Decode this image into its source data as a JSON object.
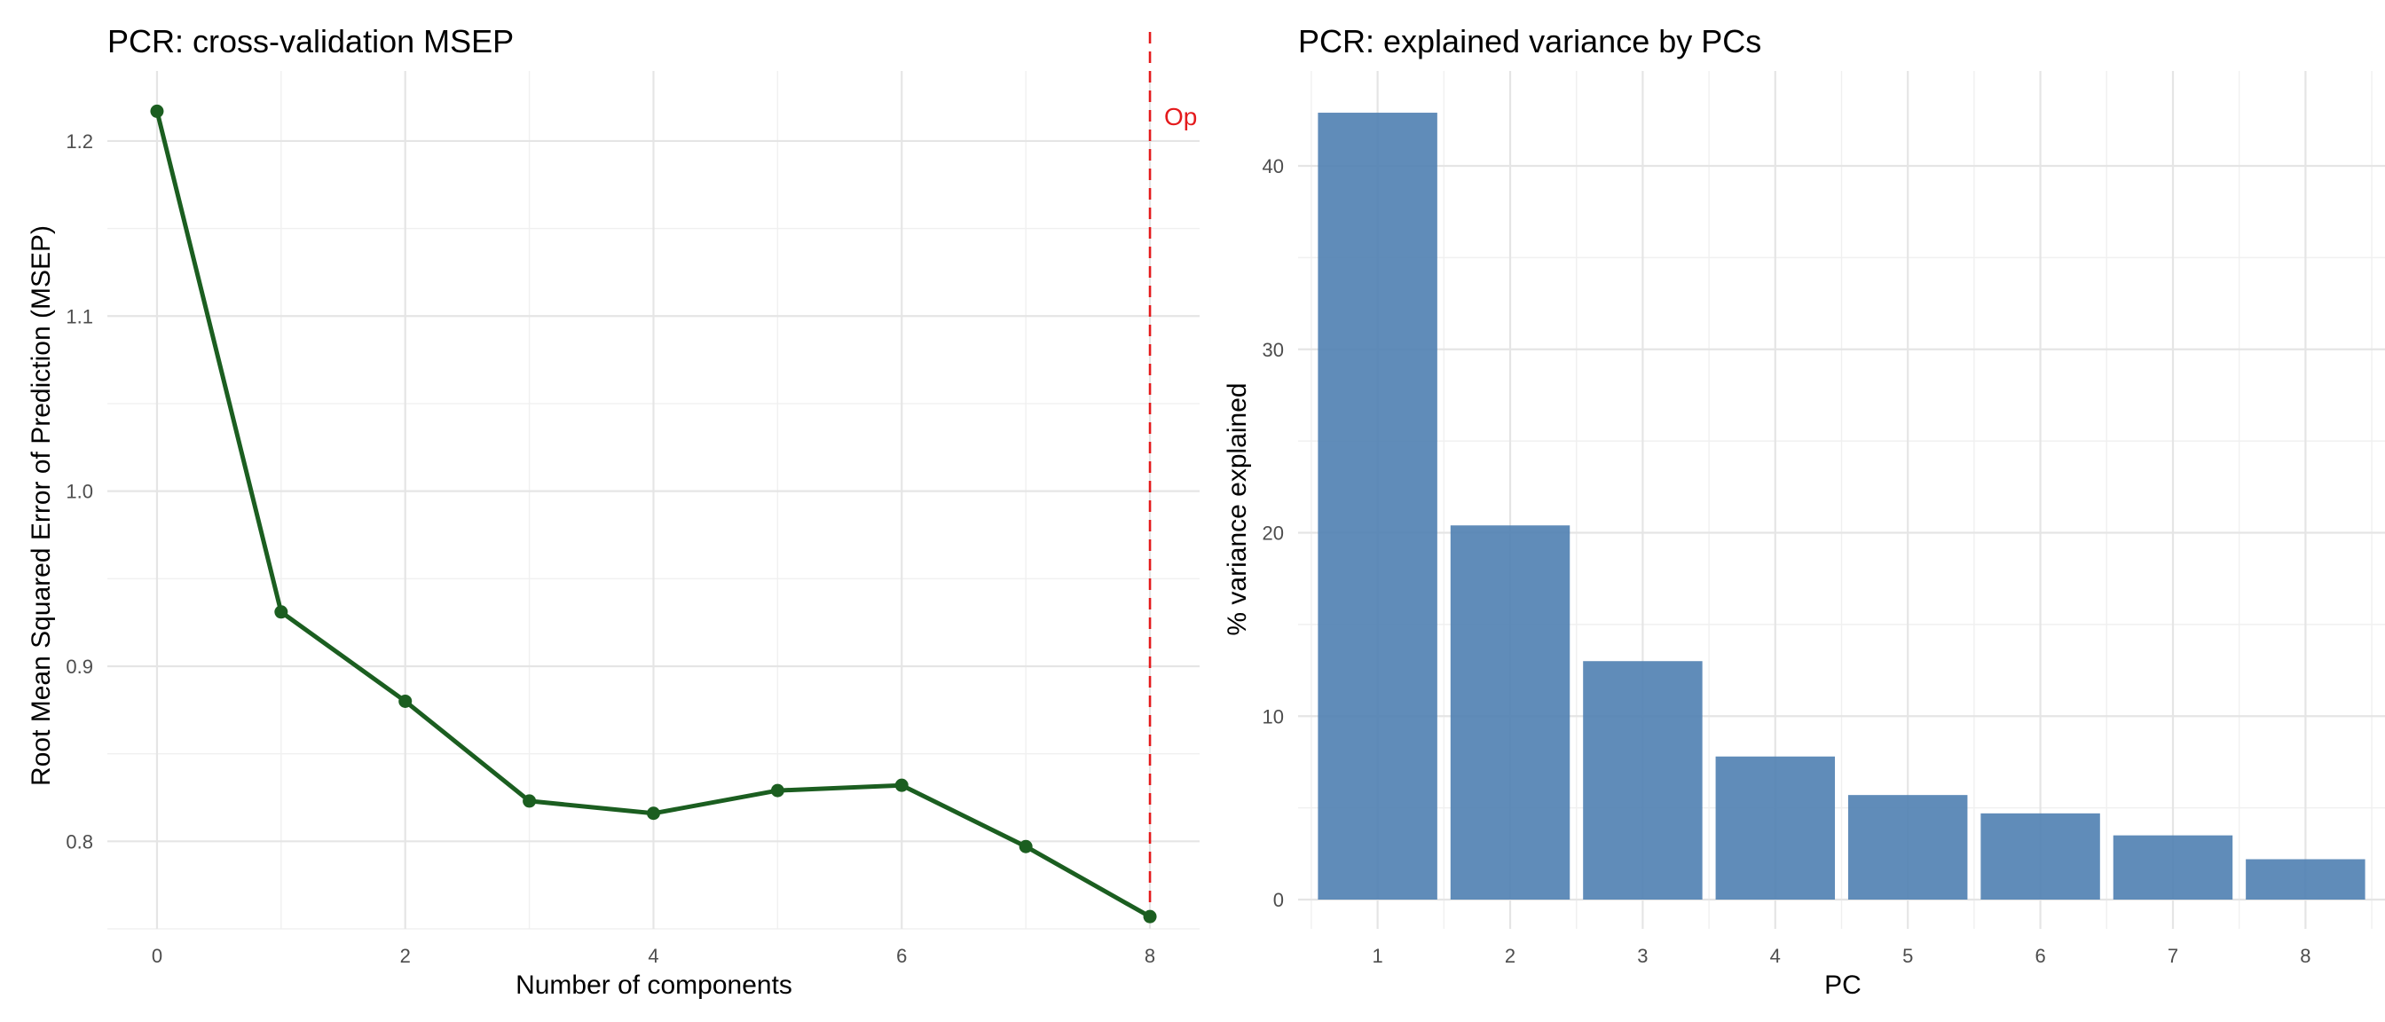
{
  "chart_data": [
    {
      "type": "line",
      "title": "PCR: cross-validation MSEP",
      "xlabel": "Number of components",
      "ylabel": "Root Mean Squared Error of Prediction (MSEP)",
      "x": [
        0,
        1,
        2,
        3,
        4,
        5,
        6,
        7,
        8
      ],
      "series": [
        {
          "values": [
            1.217,
            0.931,
            0.88,
            0.823,
            0.816,
            0.829,
            0.832,
            0.797,
            0.757
          ]
        }
      ],
      "x_ticks": [
        "0",
        "2",
        "4",
        "6",
        "8"
      ],
      "y_ticks": [
        "0.8",
        "0.9",
        "1.0",
        "1.1",
        "1.2"
      ],
      "xlim": [
        -0.4,
        8.4
      ],
      "ylim": [
        0.75,
        1.24
      ],
      "line_color": "#1b5e20",
      "reference_line": {
        "x": 8,
        "color": "#e41a1c",
        "style": "dashed",
        "label": "Op"
      },
      "grid": true
    },
    {
      "type": "bar",
      "title": "PCR: explained variance by PCs",
      "xlabel": "PC",
      "ylabel": "% variance explained",
      "categories": [
        "1",
        "2",
        "3",
        "4",
        "5",
        "6",
        "7",
        "8"
      ],
      "values": [
        42.9,
        20.4,
        13.0,
        7.8,
        5.7,
        4.7,
        3.5,
        2.2
      ],
      "y_ticks": [
        "0",
        "10",
        "20",
        "30",
        "40"
      ],
      "ylim": [
        0,
        45
      ],
      "bar_color": "#4f7fb1",
      "grid": true
    }
  ]
}
